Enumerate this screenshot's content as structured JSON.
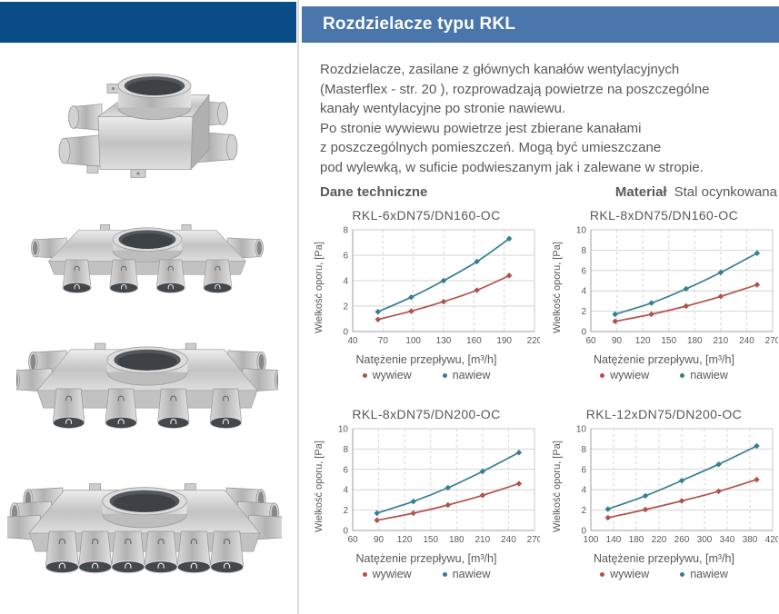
{
  "header": {
    "title": "Rozdzielacze typu RKL",
    "bar_color": "#4b76ab",
    "left_accent_color": "#0b4d86",
    "text_color": "#ffffff"
  },
  "intro": {
    "text_color": "#595959",
    "lines": [
      "Rozdzielacze, zasilane z głównych kanałów wentylacyjnych",
      "(Masterflex - str. 20 ), rozprowadzają powietrze na poszczególne",
      "kanały wentylacyjne po stronie nawiewu.",
      "Po stronie wywiewu powietrze jest zbierane kanałami",
      "z poszczególnych pomieszczeń. Mogą być umieszczane",
      "pod wylewką, w suficie podwieszanym jak i zalewane w stropie."
    ]
  },
  "section": {
    "dane_techniczne": "Dane techniczne",
    "material_label": "Materiał",
    "material_value": "Stal ocynkowana"
  },
  "product_images": [
    {
      "name": "rkl-distributor-photo-1",
      "style": "cube",
      "left_spigots": 2,
      "right_spigots": 2,
      "bottom_spigots": 0
    },
    {
      "name": "rkl-distributor-photo-2",
      "style": "flat",
      "left_spigots": 1,
      "right_spigots": 1,
      "bottom_spigots": 4
    },
    {
      "name": "rkl-distributor-photo-3",
      "style": "flat",
      "left_spigots": 2,
      "right_spigots": 2,
      "bottom_spigots": 4
    },
    {
      "name": "rkl-distributor-photo-4",
      "style": "flat",
      "left_spigots": 3,
      "right_spigots": 3,
      "bottom_spigots": 6
    }
  ],
  "chart_data": [
    {
      "type": "line",
      "title": "RKL-6xDN75/DN160-OC",
      "xlabel": "Natężenie przepływu, [m³/h]",
      "ylabel": "Wielkość oporu, [Pa]",
      "xlim": [
        40,
        220
      ],
      "xticks": [
        40,
        70,
        100,
        130,
        160,
        190,
        220
      ],
      "ylim": [
        0,
        8
      ],
      "yticks": [
        0,
        2,
        4,
        6,
        8
      ],
      "grid": true,
      "legend_position": "bottom",
      "series": [
        {
          "name": "wywiew",
          "color": "#b0534c",
          "x": [
            65,
            98,
            130,
            163,
            195
          ],
          "y": [
            0.95,
            1.6,
            2.35,
            3.25,
            4.4
          ]
        },
        {
          "name": "nawiew",
          "color": "#367f90",
          "x": [
            65,
            98,
            130,
            163,
            195
          ],
          "y": [
            1.55,
            2.7,
            4.0,
            5.5,
            7.3
          ]
        }
      ]
    },
    {
      "type": "line",
      "title": "RKL-8xDN75/DN160-OC",
      "xlabel": "Natężenie przepływu, [m³/h]",
      "ylabel": "Wielkość oporu, [Pa]",
      "xlim": [
        60,
        270
      ],
      "xticks": [
        60,
        90,
        120,
        150,
        180,
        210,
        240,
        270
      ],
      "ylim": [
        0,
        10
      ],
      "yticks": [
        0,
        2,
        4,
        6,
        8,
        10
      ],
      "grid": true,
      "legend_position": "bottom",
      "series": [
        {
          "name": "wywiew",
          "color": "#b0534c",
          "x": [
            88,
            130,
            170,
            210,
            252
          ],
          "y": [
            1.0,
            1.7,
            2.5,
            3.45,
            4.6
          ]
        },
        {
          "name": "nawiew",
          "color": "#367f90",
          "x": [
            88,
            130,
            170,
            210,
            252
          ],
          "y": [
            1.7,
            2.8,
            4.2,
            5.8,
            7.7
          ]
        }
      ]
    },
    {
      "type": "line",
      "title": "RKL-8xDN75/DN200-OC",
      "xlabel": "Natężenie przepływu, [m³/h]",
      "ylabel": "Wielkość oporu, [Pa]",
      "xlim": [
        60,
        270
      ],
      "xticks": [
        60,
        90,
        120,
        150,
        180,
        210,
        240,
        270
      ],
      "ylim": [
        0,
        10
      ],
      "yticks": [
        0,
        2,
        4,
        6,
        8,
        10
      ],
      "grid": true,
      "legend_position": "bottom",
      "series": [
        {
          "name": "wywiew",
          "color": "#b0534c",
          "x": [
            88,
            130,
            170,
            210,
            252
          ],
          "y": [
            1.0,
            1.7,
            2.5,
            3.45,
            4.6
          ]
        },
        {
          "name": "nawiew",
          "color": "#367f90",
          "x": [
            88,
            130,
            170,
            210,
            252
          ],
          "y": [
            1.7,
            2.85,
            4.2,
            5.8,
            7.65
          ]
        }
      ]
    },
    {
      "type": "line",
      "title": "RKL-12xDN75/DN200-OC",
      "xlabel": "Natężenie przepływu, [m³/h]",
      "ylabel": "Wielkość oporu, [Pa]",
      "xlim": [
        100,
        420
      ],
      "xticks": [
        100,
        140,
        180,
        220,
        260,
        300,
        340,
        380,
        420
      ],
      "ylim": [
        0,
        10
      ],
      "yticks": [
        0,
        2,
        4,
        6,
        8,
        10
      ],
      "grid": true,
      "legend_position": "bottom",
      "series": [
        {
          "name": "wywiew",
          "color": "#b0534c",
          "x": [
            130,
            196,
            260,
            325,
            392
          ],
          "y": [
            1.25,
            2.05,
            2.9,
            3.85,
            5.0
          ]
        },
        {
          "name": "nawiew",
          "color": "#367f90",
          "x": [
            130,
            196,
            260,
            325,
            392
          ],
          "y": [
            2.1,
            3.4,
            4.9,
            6.5,
            8.3
          ]
        }
      ]
    }
  ]
}
